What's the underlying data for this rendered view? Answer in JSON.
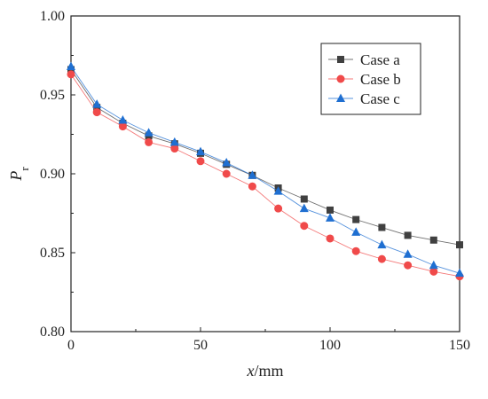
{
  "chart_data": {
    "type": "line",
    "title": "",
    "xlabel": {
      "var": "x",
      "unit": "/mm"
    },
    "ylabel": {
      "var": "P",
      "sub": "r"
    },
    "xlim": [
      0,
      150
    ],
    "ylim": [
      0.8,
      1.0
    ],
    "x_ticks": [
      "0",
      "50",
      "100",
      "150"
    ],
    "y_ticks": [
      "0.80",
      "0.85",
      "0.90",
      "0.95",
      "1.00"
    ],
    "grid": false,
    "legend_position": "top-right",
    "x": [
      0,
      10,
      20,
      30,
      40,
      50,
      60,
      70,
      80,
      90,
      100,
      110,
      120,
      130,
      140,
      150
    ],
    "series": [
      {
        "name": "Case a",
        "marker": "square",
        "color": "#404040",
        "values": [
          0.966,
          0.942,
          0.932,
          0.924,
          0.919,
          0.913,
          0.906,
          0.899,
          0.891,
          0.884,
          0.877,
          0.871,
          0.866,
          0.861,
          0.858,
          0.855
        ]
      },
      {
        "name": "Case b",
        "marker": "circle",
        "color": "#f04a4a",
        "values": [
          0.963,
          0.939,
          0.93,
          0.92,
          0.916,
          0.908,
          0.9,
          0.892,
          0.878,
          0.867,
          0.859,
          0.851,
          0.846,
          0.842,
          0.838,
          0.835
        ]
      },
      {
        "name": "Case c",
        "marker": "triangle",
        "color": "#1f6fd1",
        "values": [
          0.968,
          0.944,
          0.934,
          0.926,
          0.92,
          0.914,
          0.907,
          0.899,
          0.889,
          0.878,
          0.872,
          0.863,
          0.855,
          0.849,
          0.842,
          0.837
        ]
      }
    ]
  }
}
